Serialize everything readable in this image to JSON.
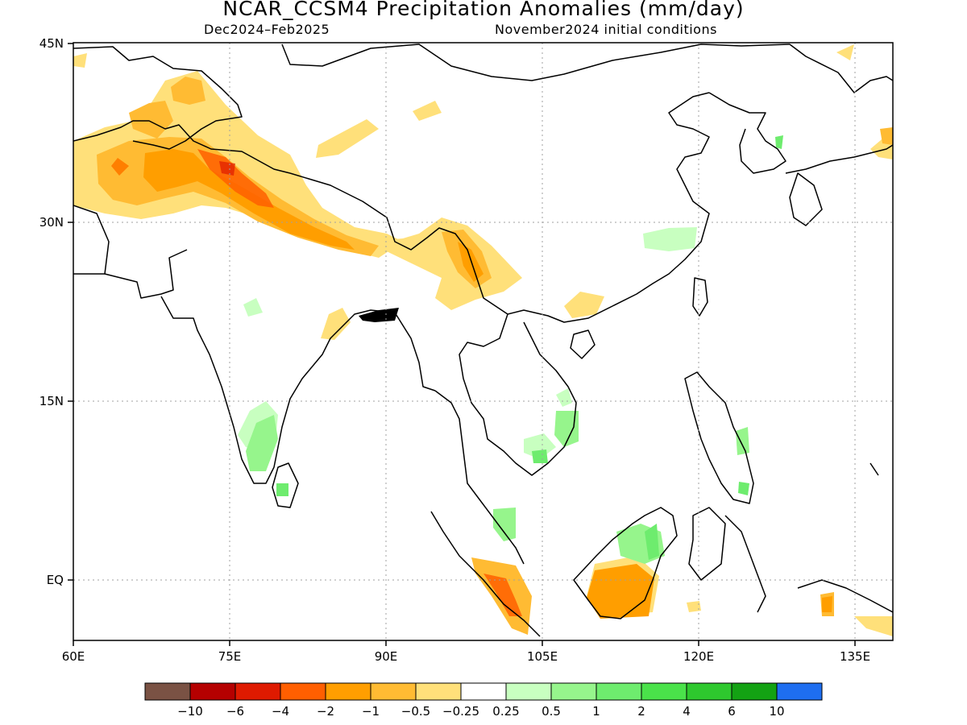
{
  "title": "NCAR_CCSM4 Precipitation Anomalies (mm/day)",
  "period": "Dec2024–Feb2025",
  "initial_conditions": "November2024 initial conditions",
  "lat_labels": [
    "45N",
    "30N",
    "15N",
    "EQ"
  ],
  "lon_labels": [
    "60E",
    "75E",
    "90E",
    "105E",
    "120E",
    "135E"
  ],
  "colorbar": {
    "colors": [
      "#7a5244",
      "#b50000",
      "#de1a00",
      "#ff5f00",
      "#ff9e00",
      "#ffbb33",
      "#ffe07a",
      "#ffffff",
      "#c8ffc0",
      "#96f58c",
      "#6eec6e",
      "#4ae24a",
      "#2ec82e",
      "#13a213",
      "#1e6ef0"
    ],
    "labels": [
      "−10",
      "−6",
      "−4",
      "−2",
      "−1",
      "−0.5",
      "−0.25",
      "0.25",
      "0.5",
      "1",
      "2",
      "4",
      "6",
      "10"
    ]
  }
}
